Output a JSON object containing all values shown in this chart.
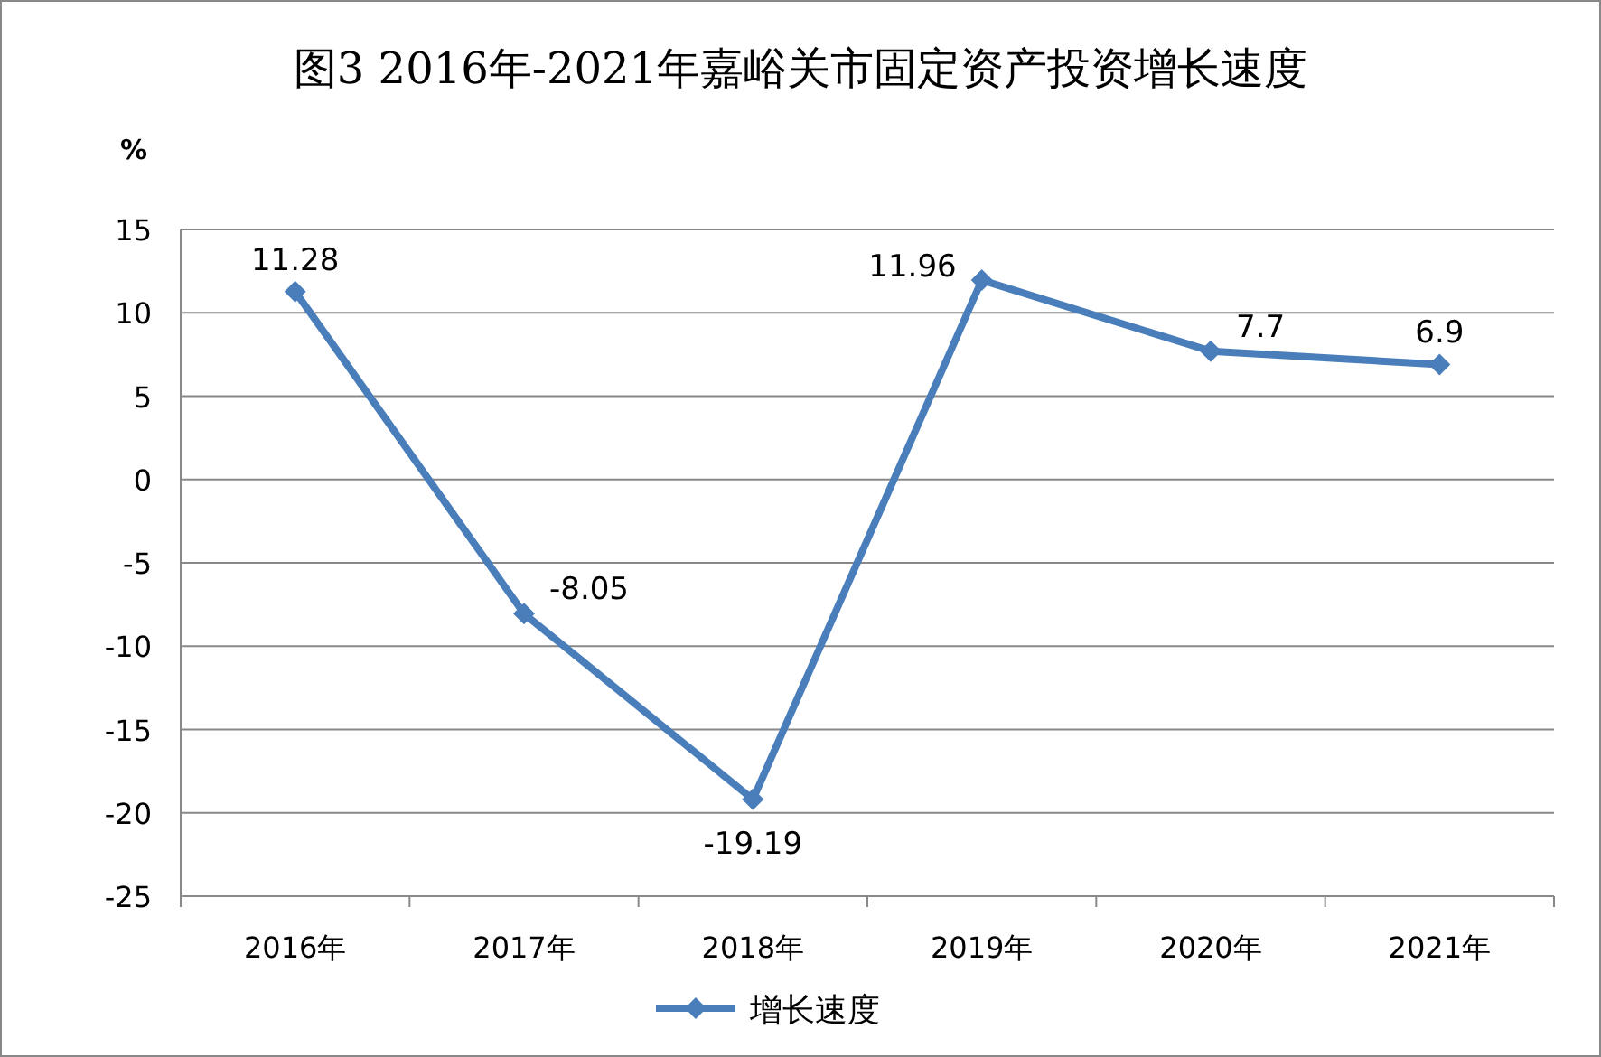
{
  "chart_data": {
    "type": "line",
    "title": "图3   2016年-2021年嘉峪关市固定资产投资增长速度",
    "ylabel": "%",
    "categories": [
      "2016年",
      "2017年",
      "2018年",
      "2019年",
      "2020年",
      "2021年"
    ],
    "series": [
      {
        "name": "增长速度",
        "color": "#4a7ebb",
        "values": [
          11.28,
          -8.05,
          -19.19,
          11.96,
          7.7,
          6.9
        ]
      }
    ],
    "ylim": [
      -25,
      15
    ],
    "yticks": [
      -25,
      -20,
      -15,
      -10,
      -5,
      0,
      5,
      10,
      15
    ],
    "grid": "y",
    "legend": "bottom",
    "marker": "diamond",
    "line_style": "solid",
    "data_labels": true
  }
}
